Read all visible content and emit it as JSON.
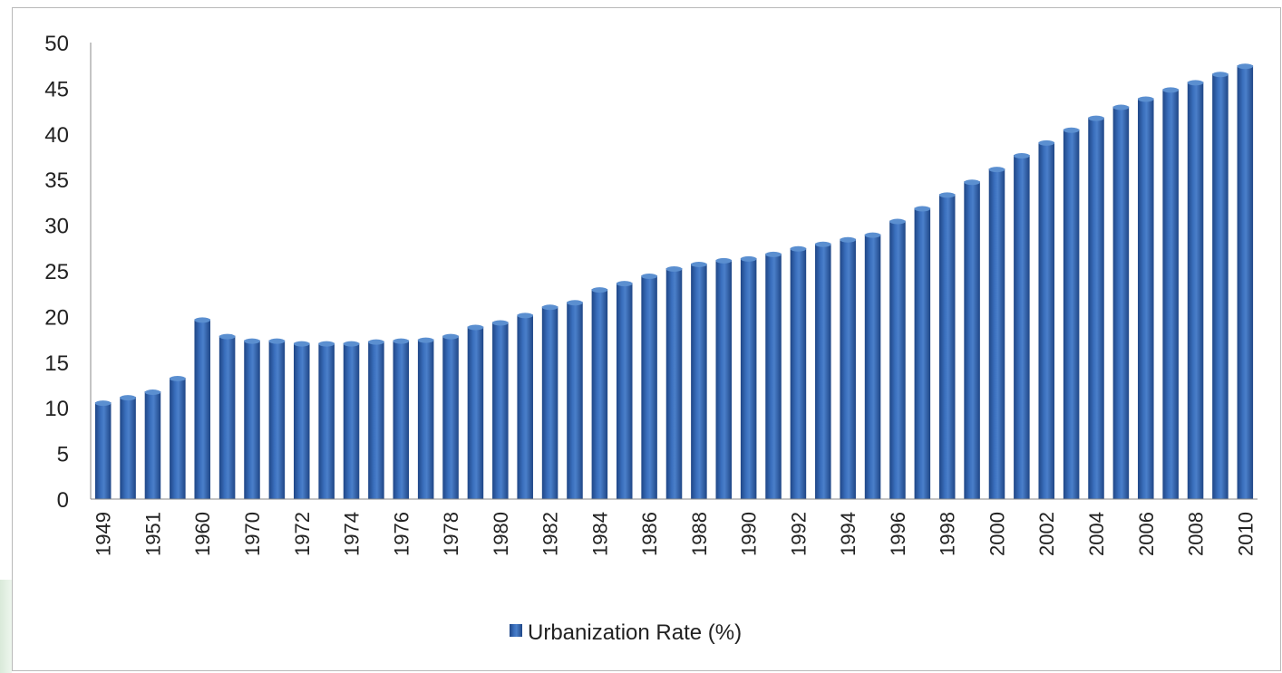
{
  "chart_data": {
    "type": "bar",
    "categories": [
      "1949",
      "",
      "1951",
      "",
      "1960",
      "",
      "1970",
      "",
      "1972",
      "",
      "1974",
      "",
      "1976",
      "",
      "1978",
      "",
      "1980",
      "",
      "1982",
      "",
      "1984",
      "",
      "1986",
      "",
      "1988",
      "",
      "1990",
      "",
      "1992",
      "",
      "1994",
      "",
      "1996",
      "",
      "1998",
      "",
      "2000",
      "",
      "2002",
      "",
      "2004",
      "",
      "2006",
      "",
      "2008",
      "",
      "2010"
    ],
    "series": [
      {
        "name": "Urbanization Rate (%)",
        "values": [
          10.6,
          11.2,
          11.8,
          13.3,
          19.7,
          17.9,
          17.4,
          17.4,
          17.1,
          17.1,
          17.1,
          17.3,
          17.4,
          17.5,
          17.9,
          18.9,
          19.4,
          20.2,
          21.1,
          21.6,
          23.0,
          23.7,
          24.5,
          25.3,
          25.8,
          26.2,
          26.4,
          26.9,
          27.5,
          28.0,
          28.5,
          29.0,
          30.5,
          31.9,
          33.4,
          34.8,
          36.2,
          37.7,
          39.1,
          40.5,
          41.8,
          43.0,
          43.9,
          44.9,
          45.7,
          46.6,
          47.5
        ]
      }
    ],
    "ylim": [
      0,
      50
    ],
    "yticks": [
      0,
      5,
      10,
      15,
      20,
      25,
      30,
      35,
      40,
      45,
      50
    ],
    "title": "",
    "xlabel": "",
    "ylabel": "",
    "legend_position": "bottom",
    "grid": false,
    "colors": {
      "bar_top": "#5b8fd0",
      "bar_mid": "#3566b0",
      "bar_dark": "#1f4686",
      "axis": "#888888",
      "frame": "#b9b9b9"
    }
  }
}
